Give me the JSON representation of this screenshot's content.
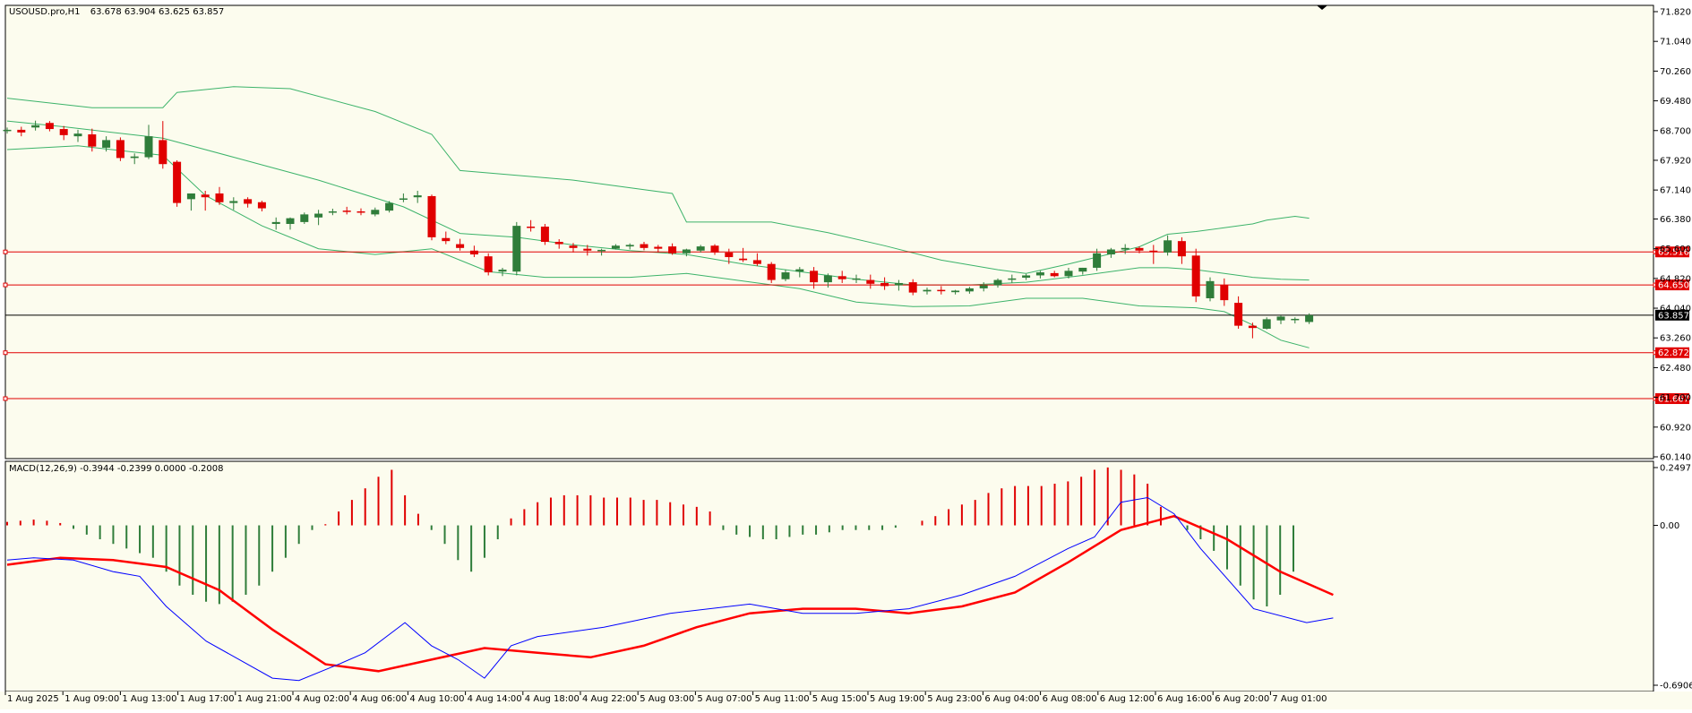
{
  "chart_data": [
    {
      "type": "candlestick",
      "title": "USOUSD.pro,H1",
      "ohlc_label": "63.678 63.904 63.625 63.857",
      "ylim": [
        60.14,
        71.82
      ],
      "y_ticks": [
        "71.820",
        "71.040",
        "70.260",
        "69.480",
        "68.700",
        "67.920",
        "67.140",
        "66.380",
        "65.600",
        "64.820",
        "64.040",
        "63.260",
        "62.480",
        "61.700",
        "60.920",
        "60.140"
      ],
      "x_ticks": [
        "1 Aug 2025",
        "1 Aug 09:00",
        "1 Aug 13:00",
        "1 Aug 17:00",
        "1 Aug 21:00",
        "4 Aug 02:00",
        "4 Aug 06:00",
        "4 Aug 10:00",
        "4 Aug 14:00",
        "4 Aug 18:00",
        "4 Aug 22:00",
        "5 Aug 03:00",
        "5 Aug 07:00",
        "5 Aug 11:00",
        "5 Aug 15:00",
        "5 Aug 19:00",
        "5 Aug 23:00",
        "6 Aug 04:00",
        "6 Aug 08:00",
        "6 Aug 12:00",
        "6 Aug 16:00",
        "6 Aug 20:00",
        "7 Aug 01:00"
      ],
      "candles": [
        [
          68.7,
          68.78,
          68.62,
          68.72
        ],
        [
          68.72,
          68.8,
          68.55,
          68.65
        ],
        [
          68.78,
          68.96,
          68.7,
          68.84
        ],
        [
          68.9,
          68.95,
          68.68,
          68.74
        ],
        [
          68.74,
          68.82,
          68.45,
          68.58
        ],
        [
          68.55,
          68.72,
          68.4,
          68.62
        ],
        [
          68.6,
          68.75,
          68.15,
          68.28
        ],
        [
          68.25,
          68.55,
          68.15,
          68.45
        ],
        [
          68.45,
          68.52,
          67.9,
          67.98
        ],
        [
          67.98,
          68.1,
          67.82,
          68.02
        ],
        [
          68.0,
          68.85,
          67.95,
          68.55
        ],
        [
          68.45,
          68.95,
          67.7,
          67.82
        ],
        [
          67.88,
          67.92,
          66.7,
          66.8
        ],
        [
          66.9,
          67.05,
          66.6,
          67.05
        ],
        [
          67.02,
          67.12,
          66.6,
          66.95
        ],
        [
          67.05,
          67.22,
          66.75,
          66.82
        ],
        [
          66.8,
          66.95,
          66.62,
          66.85
        ],
        [
          66.9,
          66.95,
          66.68,
          66.78
        ],
        [
          66.82,
          66.86,
          66.58,
          66.66
        ],
        [
          66.25,
          66.42,
          66.1,
          66.3
        ],
        [
          66.25,
          66.42,
          66.1,
          66.4
        ],
        [
          66.3,
          66.55,
          66.25,
          66.5
        ],
        [
          66.42,
          66.62,
          66.22,
          66.52
        ],
        [
          66.55,
          66.65,
          66.48,
          66.58
        ],
        [
          66.6,
          66.7,
          66.5,
          66.58
        ],
        [
          66.58,
          66.66,
          66.48,
          66.56
        ],
        [
          66.5,
          66.68,
          66.45,
          66.62
        ],
        [
          66.6,
          66.85,
          66.55,
          66.8
        ],
        [
          66.9,
          67.05,
          66.82,
          66.92
        ],
        [
          66.95,
          67.12,
          66.8,
          67.0
        ],
        [
          66.98,
          67.02,
          65.82,
          65.9
        ],
        [
          65.88,
          66.05,
          65.72,
          65.8
        ],
        [
          65.72,
          65.86,
          65.55,
          65.62
        ],
        [
          65.55,
          65.68,
          65.38,
          65.45
        ],
        [
          65.4,
          65.48,
          64.9,
          64.98
        ],
        [
          65.0,
          65.1,
          64.88,
          65.05
        ],
        [
          65.0,
          66.3,
          64.9,
          66.2
        ],
        [
          66.18,
          66.35,
          66.05,
          66.15
        ],
        [
          66.18,
          66.25,
          65.7,
          65.78
        ],
        [
          65.78,
          65.85,
          65.6,
          65.72
        ],
        [
          65.68,
          65.75,
          65.5,
          65.62
        ],
        [
          65.6,
          65.7,
          65.42,
          65.55
        ],
        [
          65.54,
          65.6,
          65.42,
          65.57
        ],
        [
          65.6,
          65.72,
          65.58,
          65.68
        ],
        [
          65.66,
          65.74,
          65.58,
          65.7
        ],
        [
          65.72,
          65.78,
          65.56,
          65.62
        ],
        [
          65.65,
          65.7,
          65.5,
          65.6
        ],
        [
          65.66,
          65.74,
          65.44,
          65.48
        ],
        [
          65.48,
          65.6,
          65.4,
          65.58
        ],
        [
          65.55,
          65.7,
          65.5,
          65.66
        ],
        [
          65.68,
          65.72,
          65.44,
          65.5
        ],
        [
          65.5,
          65.6,
          65.2,
          65.38
        ],
        [
          65.34,
          65.62,
          65.25,
          65.3
        ],
        [
          65.3,
          65.48,
          65.15,
          65.2
        ],
        [
          65.2,
          65.25,
          64.7,
          64.78
        ],
        [
          64.8,
          65.05,
          64.75,
          64.98
        ],
        [
          65.0,
          65.12,
          64.85,
          65.06
        ],
        [
          65.02,
          65.12,
          64.55,
          64.72
        ],
        [
          64.72,
          64.95,
          64.58,
          64.9
        ],
        [
          64.88,
          65.02,
          64.7,
          64.8
        ],
        [
          64.8,
          64.92,
          64.7,
          64.82
        ],
        [
          64.78,
          64.92,
          64.55,
          64.68
        ],
        [
          64.7,
          64.85,
          64.52,
          64.62
        ],
        [
          64.64,
          64.78,
          64.5,
          64.7
        ],
        [
          64.72,
          64.8,
          64.38,
          64.45
        ],
        [
          64.48,
          64.58,
          64.4,
          64.52
        ],
        [
          64.52,
          64.62,
          64.4,
          64.5
        ],
        [
          64.46,
          64.52,
          64.4,
          64.5
        ],
        [
          64.48,
          64.6,
          64.42,
          64.56
        ],
        [
          64.56,
          64.72,
          64.48,
          64.64
        ],
        [
          64.64,
          64.82,
          64.58,
          64.78
        ],
        [
          64.8,
          64.92,
          64.7,
          64.82
        ],
        [
          64.84,
          64.94,
          64.78,
          64.9
        ],
        [
          64.9,
          65.02,
          64.82,
          64.98
        ],
        [
          64.96,
          65.02,
          64.85,
          64.88
        ],
        [
          64.88,
          65.1,
          64.82,
          65.02
        ],
        [
          65.0,
          65.1,
          64.92,
          65.1
        ],
        [
          65.1,
          65.6,
          65.02,
          65.48
        ],
        [
          65.45,
          65.62,
          65.36,
          65.58
        ],
        [
          65.58,
          65.72,
          65.46,
          65.62
        ],
        [
          65.62,
          65.66,
          65.48,
          65.55
        ],
        [
          65.55,
          65.7,
          65.2,
          65.52
        ],
        [
          65.5,
          65.95,
          65.42,
          65.82
        ],
        [
          65.8,
          65.9,
          65.2,
          65.4
        ],
        [
          65.42,
          65.6,
          64.2,
          64.35
        ],
        [
          64.3,
          64.85,
          64.22,
          64.75
        ],
        [
          64.65,
          64.82,
          64.1,
          64.25
        ],
        [
          64.18,
          64.35,
          63.5,
          63.58
        ],
        [
          63.58,
          63.66,
          63.25,
          63.52
        ],
        [
          63.5,
          63.8,
          63.48,
          63.75
        ],
        [
          63.72,
          63.85,
          63.62,
          63.82
        ],
        [
          63.74,
          63.8,
          63.64,
          63.76
        ],
        [
          63.678,
          63.904,
          63.625,
          63.857
        ]
      ],
      "bollinger": {
        "upper": [
          [
            0,
            69.55
          ],
          [
            6,
            69.3
          ],
          [
            11,
            69.3
          ],
          [
            12,
            69.7
          ],
          [
            16,
            69.85
          ],
          [
            20,
            69.8
          ],
          [
            26,
            69.2
          ],
          [
            30,
            68.6
          ],
          [
            32,
            67.65
          ],
          [
            40,
            67.4
          ],
          [
            47,
            67.05
          ],
          [
            48,
            66.3
          ],
          [
            54,
            66.3
          ],
          [
            58,
            66.02
          ],
          [
            62,
            65.68
          ],
          [
            66,
            65.3
          ],
          [
            70,
            65.05
          ],
          [
            72,
            64.95
          ],
          [
            75,
            65.2
          ],
          [
            80,
            65.65
          ],
          [
            82,
            65.98
          ],
          [
            84,
            66.05
          ],
          [
            86,
            66.15
          ],
          [
            88,
            66.25
          ],
          [
            89,
            66.35
          ],
          [
            91,
            66.45
          ],
          [
            92,
            66.4
          ]
        ],
        "middle": [
          [
            0,
            68.95
          ],
          [
            4,
            68.8
          ],
          [
            11,
            68.5
          ],
          [
            16,
            68.0
          ],
          [
            22,
            67.4
          ],
          [
            28,
            66.7
          ],
          [
            32,
            66.0
          ],
          [
            36,
            65.9
          ],
          [
            40,
            65.7
          ],
          [
            44,
            65.55
          ],
          [
            48,
            65.45
          ],
          [
            52,
            65.2
          ],
          [
            56,
            65.0
          ],
          [
            60,
            64.8
          ],
          [
            64,
            64.65
          ],
          [
            68,
            64.65
          ],
          [
            72,
            64.72
          ],
          [
            76,
            64.9
          ],
          [
            80,
            65.1
          ],
          [
            82,
            65.1
          ],
          [
            84,
            65.05
          ],
          [
            86,
            64.95
          ],
          [
            88,
            64.85
          ],
          [
            90,
            64.8
          ],
          [
            92,
            64.78
          ]
        ],
        "lower": [
          [
            0,
            68.2
          ],
          [
            5,
            68.3
          ],
          [
            11,
            68.05
          ],
          [
            14,
            67.0
          ],
          [
            18,
            66.2
          ],
          [
            22,
            65.6
          ],
          [
            26,
            65.45
          ],
          [
            30,
            65.6
          ],
          [
            34,
            65.0
          ],
          [
            38,
            64.85
          ],
          [
            44,
            64.85
          ],
          [
            48,
            64.95
          ],
          [
            52,
            64.75
          ],
          [
            56,
            64.55
          ],
          [
            60,
            64.2
          ],
          [
            64,
            64.08
          ],
          [
            68,
            64.1
          ],
          [
            72,
            64.3
          ],
          [
            76,
            64.3
          ],
          [
            80,
            64.1
          ],
          [
            84,
            64.05
          ],
          [
            86,
            63.95
          ],
          [
            88,
            63.6
          ],
          [
            90,
            63.2
          ],
          [
            92,
            63.0
          ]
        ]
      },
      "hlines": [
        {
          "value": 65.516,
          "label": "65.516",
          "color": "#e00000"
        },
        {
          "value": 64.65,
          "label": "64.650",
          "color": "#e00000"
        },
        {
          "value": 63.857,
          "label": "63.857",
          "color": "#000000"
        },
        {
          "value": 62.872,
          "label": "62.872",
          "color": "#e00000"
        },
        {
          "value": 61.667,
          "label": "61.667",
          "color": "#e00000"
        }
      ]
    },
    {
      "type": "macd",
      "title": "MACD(12,26,9) -0.3944 -0.2399 0.0000 -0.2008",
      "ylim": [
        -0.6906,
        0.2497
      ],
      "y_ticks": [
        "0.2497",
        "0.00",
        "-0.6906"
      ],
      "histogram": [
        0.015,
        0.02,
        0.025,
        0.02,
        0.01,
        -0.015,
        -0.04,
        -0.06,
        -0.08,
        -0.1,
        -0.12,
        -0.14,
        -0.2,
        -0.26,
        -0.3,
        -0.33,
        -0.34,
        -0.33,
        -0.3,
        -0.26,
        -0.2,
        -0.14,
        -0.08,
        -0.02,
        0.005,
        0.06,
        0.11,
        0.16,
        0.21,
        0.24,
        0.13,
        0.05,
        -0.02,
        -0.08,
        -0.15,
        -0.2,
        -0.14,
        -0.06,
        0.03,
        0.07,
        0.1,
        0.12,
        0.13,
        0.13,
        0.13,
        0.12,
        0.12,
        0.12,
        0.11,
        0.11,
        0.1,
        0.09,
        0.08,
        0.06,
        -0.02,
        -0.04,
        -0.05,
        -0.06,
        -0.06,
        -0.05,
        -0.04,
        -0.04,
        -0.03,
        -0.02,
        -0.02,
        -0.02,
        -0.02,
        -0.01,
        0.0,
        0.02,
        0.04,
        0.07,
        0.09,
        0.11,
        0.14,
        0.16,
        0.17,
        0.17,
        0.17,
        0.18,
        0.19,
        0.21,
        0.24,
        0.25,
        0.24,
        0.22,
        0.18,
        0.08,
        0.0,
        -0.02,
        -0.06,
        -0.11,
        -0.19,
        -0.26,
        -0.32,
        -0.35,
        -0.3,
        -0.2
      ],
      "macd": [
        [
          0,
          -0.15
        ],
        [
          2,
          -0.14
        ],
        [
          5,
          -0.15
        ],
        [
          8,
          -0.2
        ],
        [
          10,
          -0.22
        ],
        [
          12,
          -0.35
        ],
        [
          15,
          -0.5
        ],
        [
          20,
          -0.66
        ],
        [
          22,
          -0.67
        ],
        [
          25,
          -0.6
        ],
        [
          27,
          -0.55
        ],
        [
          30,
          -0.42
        ],
        [
          32,
          -0.52
        ],
        [
          34,
          -0.58
        ],
        [
          36,
          -0.66
        ],
        [
          38,
          -0.52
        ],
        [
          40,
          -0.48
        ],
        [
          45,
          -0.44
        ],
        [
          50,
          -0.38
        ],
        [
          56,
          -0.34
        ],
        [
          58,
          -0.36
        ],
        [
          60,
          -0.38
        ],
        [
          64,
          -0.38
        ],
        [
          68,
          -0.36
        ],
        [
          72,
          -0.3
        ],
        [
          76,
          -0.22
        ],
        [
          80,
          -0.1
        ],
        [
          82,
          -0.05
        ],
        [
          84,
          0.1
        ],
        [
          86,
          0.12
        ],
        [
          88,
          0.05
        ],
        [
          90,
          -0.1
        ],
        [
          94,
          -0.36
        ],
        [
          98,
          -0.42
        ],
        [
          100,
          -0.4
        ]
      ],
      "signal": [
        [
          0,
          -0.17
        ],
        [
          4,
          -0.14
        ],
        [
          8,
          -0.15
        ],
        [
          12,
          -0.18
        ],
        [
          16,
          -0.28
        ],
        [
          20,
          -0.45
        ],
        [
          24,
          -0.6
        ],
        [
          28,
          -0.63
        ],
        [
          32,
          -0.58
        ],
        [
          36,
          -0.53
        ],
        [
          40,
          -0.55
        ],
        [
          44,
          -0.57
        ],
        [
          48,
          -0.52
        ],
        [
          52,
          -0.44
        ],
        [
          56,
          -0.38
        ],
        [
          60,
          -0.36
        ],
        [
          64,
          -0.36
        ],
        [
          68,
          -0.38
        ],
        [
          72,
          -0.35
        ],
        [
          76,
          -0.29
        ],
        [
          80,
          -0.16
        ],
        [
          84,
          -0.02
        ],
        [
          88,
          0.04
        ],
        [
          92,
          -0.06
        ],
        [
          96,
          -0.2
        ],
        [
          100,
          -0.3
        ]
      ]
    }
  ],
  "colors": {
    "background": "#fcfcee",
    "bull": "#2f7d3a",
    "bear": "#e00000",
    "band": "#3cb36a",
    "macd_line": "#0000ff",
    "signal_line": "#ff0000",
    "border": "#000000"
  }
}
